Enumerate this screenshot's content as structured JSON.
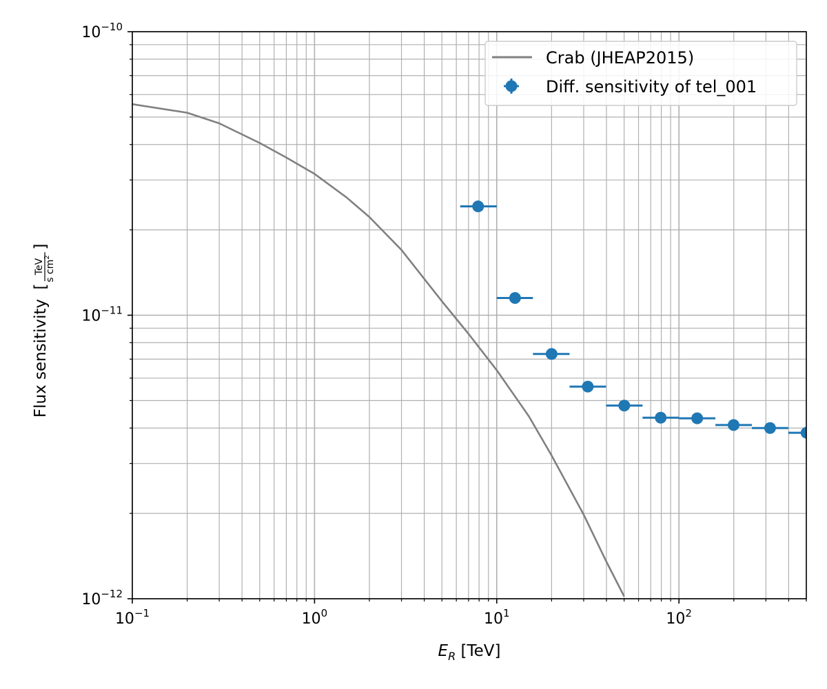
{
  "chart_data": {
    "type": "scatter",
    "xscale": "log",
    "yscale": "log",
    "xlim": [
      0.1,
      500
    ],
    "ylim": [
      1e-12,
      1e-10
    ],
    "grid": "major and minor",
    "legend_position": "top-right",
    "xlabel": {
      "var": "E",
      "sub": "R",
      "unit": " [TeV]"
    },
    "ylabel": {
      "text": "Flux sensitivity",
      "num": "TeV",
      "den_a": "s cm",
      "den_sup": "2"
    },
    "x_tick_labels": [
      {
        "value": 0.1,
        "base": "10",
        "exp": "−1"
      },
      {
        "value": 1,
        "base": "10",
        "exp": "0"
      },
      {
        "value": 10,
        "base": "10",
        "exp": "1"
      },
      {
        "value": 100,
        "base": "10",
        "exp": "2"
      }
    ],
    "y_tick_labels": [
      {
        "value": 1e-12,
        "base": "10",
        "exp": "−12"
      },
      {
        "value": 1e-11,
        "base": "10",
        "exp": "−11"
      },
      {
        "value": 1e-10,
        "base": "10",
        "exp": "−10"
      }
    ],
    "series": [
      {
        "name": "Crab (JHEAP2015)",
        "kind": "line",
        "color": "#808080",
        "x": [
          0.1,
          0.2,
          0.3,
          0.5,
          0.7,
          1,
          1.5,
          2,
          3,
          5,
          7,
          10,
          15,
          20,
          30,
          40,
          50
        ],
        "y": [
          5.55e-11,
          5.18e-11,
          4.75e-11,
          4.05e-11,
          3.6e-11,
          3.15e-11,
          2.6e-11,
          2.22e-11,
          1.7e-11,
          1.12e-11,
          8.6e-12,
          6.4e-12,
          4.4e-12,
          3.2e-12,
          1.98e-12,
          1.35e-12,
          1.02e-12
        ]
      },
      {
        "name": "Diff. sensitivity of tel_001",
        "kind": "errorbar",
        "color": "#1f77b4",
        "points": [
          {
            "x": 7.9,
            "y": 2.42e-11,
            "xlo": 6.3,
            "xhi": 10.0
          },
          {
            "x": 12.6,
            "y": 1.15e-11,
            "xlo": 10.0,
            "xhi": 15.8
          },
          {
            "x": 20.0,
            "y": 7.3e-12,
            "xlo": 15.8,
            "xhi": 25.1
          },
          {
            "x": 31.6,
            "y": 5.6e-12,
            "xlo": 25.1,
            "xhi": 39.8
          },
          {
            "x": 50.1,
            "y": 4.8e-12,
            "xlo": 39.8,
            "xhi": 63.1
          },
          {
            "x": 79.4,
            "y": 4.35e-12,
            "xlo": 63.1,
            "xhi": 100
          },
          {
            "x": 125.9,
            "y": 4.33e-12,
            "xlo": 100,
            "xhi": 158.5
          },
          {
            "x": 199.5,
            "y": 4.1e-12,
            "xlo": 158.5,
            "xhi": 251.2
          },
          {
            "x": 316.2,
            "y": 4e-12,
            "xlo": 251.2,
            "xhi": 398.1
          },
          {
            "x": 501.2,
            "y": 3.85e-12,
            "xlo": 398.1,
            "xhi": 631
          }
        ]
      }
    ]
  }
}
